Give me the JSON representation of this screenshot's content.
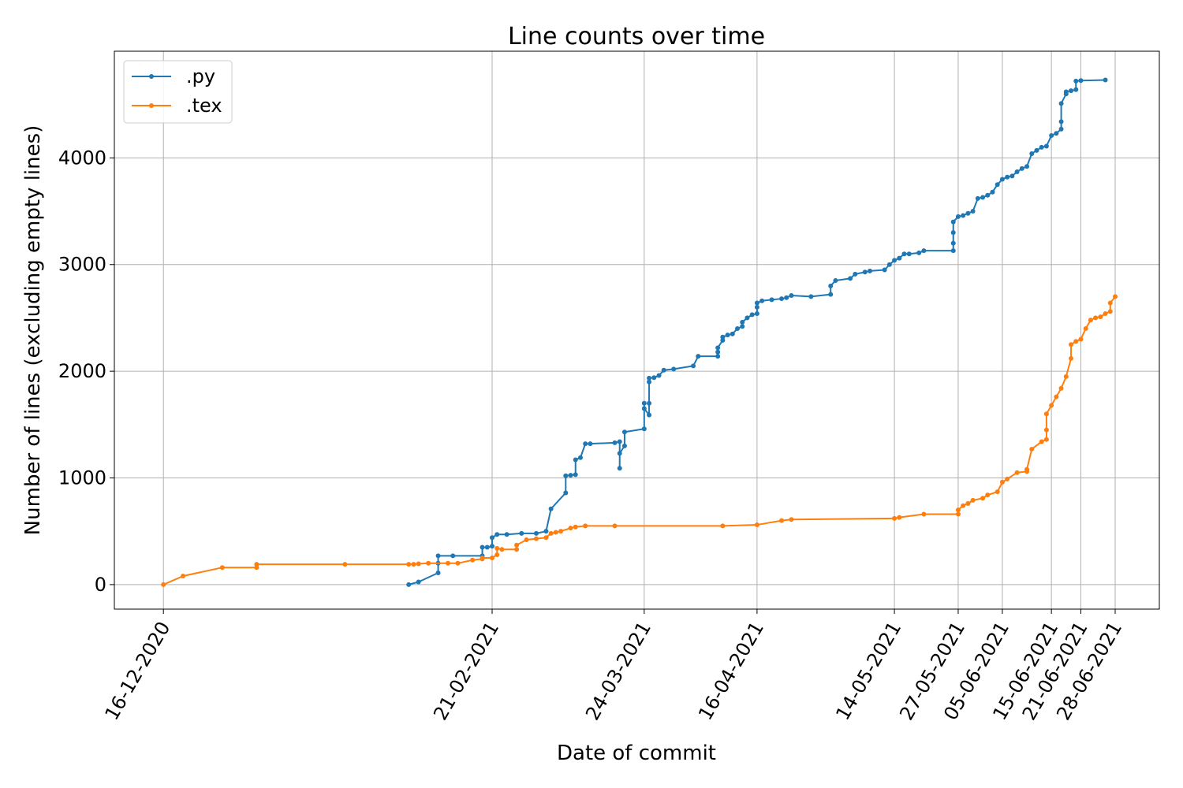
{
  "chart_data": {
    "type": "line",
    "title": "Line counts over time",
    "xlabel": "Date of commit",
    "ylabel": "Number of lines (excluding empty lines)",
    "x_ticks": [
      "2020-12-16",
      "2021-02-21",
      "2021-03-24",
      "2021-04-16",
      "2021-05-14",
      "2021-05-27",
      "2021-06-05",
      "2021-06-15",
      "2021-06-21",
      "2021-06-28"
    ],
    "x_tick_labels": [
      "16-12-2020",
      "21-02-2021",
      "24-03-2021",
      "16-04-2021",
      "14-05-2021",
      "27-05-2021",
      "05-06-2021",
      "15-06-2021",
      "21-06-2021",
      "28-06-2021"
    ],
    "xlim": [
      "2020-12-06",
      "2021-07-07"
    ],
    "y_ticks": [
      0,
      1000,
      2000,
      3000,
      4000
    ],
    "ylim": [
      -230,
      5000
    ],
    "grid": true,
    "legend_position": "upper-left",
    "series": [
      {
        "name": ".py",
        "color": "#1f77b4",
        "points": [
          [
            "2021-02-04",
            0
          ],
          [
            "2021-02-06",
            25
          ],
          [
            "2021-02-10",
            110
          ],
          [
            "2021-02-10",
            200
          ],
          [
            "2021-02-10",
            270
          ],
          [
            "2021-02-13",
            270
          ],
          [
            "2021-02-19",
            270
          ],
          [
            "2021-02-19",
            350
          ],
          [
            "2021-02-20",
            350
          ],
          [
            "2021-02-21",
            360
          ],
          [
            "2021-02-21",
            440
          ],
          [
            "2021-02-22",
            470
          ],
          [
            "2021-02-24",
            470
          ],
          [
            "2021-02-27",
            480
          ],
          [
            "2021-03-02",
            480
          ],
          [
            "2021-03-04",
            500
          ],
          [
            "2021-03-05",
            710
          ],
          [
            "2021-03-08",
            860
          ],
          [
            "2021-03-08",
            1020
          ],
          [
            "2021-03-09",
            1025
          ],
          [
            "2021-03-10",
            1030
          ],
          [
            "2021-03-10",
            1170
          ],
          [
            "2021-03-11",
            1190
          ],
          [
            "2021-03-12",
            1320
          ],
          [
            "2021-03-13",
            1320
          ],
          [
            "2021-03-18",
            1330
          ],
          [
            "2021-03-19",
            1340
          ],
          [
            "2021-03-19",
            1090
          ],
          [
            "2021-03-19",
            1230
          ],
          [
            "2021-03-20",
            1300
          ],
          [
            "2021-03-20",
            1430
          ],
          [
            "2021-03-24",
            1460
          ],
          [
            "2021-03-24",
            1700
          ],
          [
            "2021-03-24",
            1650
          ],
          [
            "2021-03-25",
            1590
          ],
          [
            "2021-03-25",
            1700
          ],
          [
            "2021-03-25",
            1900
          ],
          [
            "2021-03-25",
            1935
          ],
          [
            "2021-03-26",
            1940
          ],
          [
            "2021-03-27",
            1960
          ],
          [
            "2021-03-28",
            2010
          ],
          [
            "2021-03-30",
            2020
          ],
          [
            "2021-04-03",
            2050
          ],
          [
            "2021-04-04",
            2140
          ],
          [
            "2021-04-08",
            2140
          ],
          [
            "2021-04-08",
            2180
          ],
          [
            "2021-04-08",
            2220
          ],
          [
            "2021-04-09",
            2290
          ],
          [
            "2021-04-09",
            2320
          ],
          [
            "2021-04-10",
            2340
          ],
          [
            "2021-04-11",
            2350
          ],
          [
            "2021-04-12",
            2400
          ],
          [
            "2021-04-13",
            2420
          ],
          [
            "2021-04-13",
            2460
          ],
          [
            "2021-04-14",
            2500
          ],
          [
            "2021-04-15",
            2530
          ],
          [
            "2021-04-16",
            2540
          ],
          [
            "2021-04-16",
            2600
          ],
          [
            "2021-04-16",
            2640
          ],
          [
            "2021-04-17",
            2660
          ],
          [
            "2021-04-19",
            2670
          ],
          [
            "2021-04-21",
            2680
          ],
          [
            "2021-04-22",
            2690
          ],
          [
            "2021-04-23",
            2710
          ],
          [
            "2021-04-27",
            2700
          ],
          [
            "2021-05-01",
            2720
          ],
          [
            "2021-05-01",
            2800
          ],
          [
            "2021-05-02",
            2850
          ],
          [
            "2021-05-05",
            2870
          ],
          [
            "2021-05-06",
            2910
          ],
          [
            "2021-05-08",
            2930
          ],
          [
            "2021-05-09",
            2940
          ],
          [
            "2021-05-12",
            2950
          ],
          [
            "2021-05-13",
            3000
          ],
          [
            "2021-05-14",
            3040
          ],
          [
            "2021-05-15",
            3060
          ],
          [
            "2021-05-16",
            3100
          ],
          [
            "2021-05-17",
            3100
          ],
          [
            "2021-05-19",
            3110
          ],
          [
            "2021-05-20",
            3130
          ],
          [
            "2021-05-26",
            3130
          ],
          [
            "2021-05-26",
            3200
          ],
          [
            "2021-05-26",
            3300
          ],
          [
            "2021-05-26",
            3400
          ],
          [
            "2021-05-27",
            3450
          ],
          [
            "2021-05-28",
            3460
          ],
          [
            "2021-05-29",
            3480
          ],
          [
            "2021-05-30",
            3500
          ],
          [
            "2021-05-31",
            3620
          ],
          [
            "2021-06-01",
            3630
          ],
          [
            "2021-06-02",
            3650
          ],
          [
            "2021-06-03",
            3680
          ],
          [
            "2021-06-04",
            3750
          ],
          [
            "2021-06-05",
            3800
          ],
          [
            "2021-06-06",
            3820
          ],
          [
            "2021-06-07",
            3830
          ],
          [
            "2021-06-08",
            3870
          ],
          [
            "2021-06-09",
            3900
          ],
          [
            "2021-06-10",
            3920
          ],
          [
            "2021-06-11",
            4040
          ],
          [
            "2021-06-12",
            4070
          ],
          [
            "2021-06-13",
            4100
          ],
          [
            "2021-06-14",
            4110
          ],
          [
            "2021-06-15",
            4210
          ],
          [
            "2021-06-16",
            4230
          ],
          [
            "2021-06-17",
            4270
          ],
          [
            "2021-06-17",
            4340
          ],
          [
            "2021-06-17",
            4510
          ],
          [
            "2021-06-18",
            4600
          ],
          [
            "2021-06-18",
            4620
          ],
          [
            "2021-06-19",
            4630
          ],
          [
            "2021-06-20",
            4640
          ],
          [
            "2021-06-20",
            4720
          ],
          [
            "2021-06-21",
            4725
          ],
          [
            "2021-06-26",
            4730
          ]
        ]
      },
      {
        "name": ".tex",
        "color": "#ff7f0e",
        "points": [
          [
            "2020-12-16",
            0
          ],
          [
            "2020-12-20",
            80
          ],
          [
            "2020-12-28",
            160
          ],
          [
            "2021-01-04",
            160
          ],
          [
            "2021-01-04",
            190
          ],
          [
            "2021-01-22",
            190
          ],
          [
            "2021-02-04",
            190
          ],
          [
            "2021-02-05",
            190
          ],
          [
            "2021-02-06",
            195
          ],
          [
            "2021-02-08",
            200
          ],
          [
            "2021-02-12",
            200
          ],
          [
            "2021-02-14",
            200
          ],
          [
            "2021-02-17",
            230
          ],
          [
            "2021-02-19",
            240
          ],
          [
            "2021-02-19",
            250
          ],
          [
            "2021-02-21",
            250
          ],
          [
            "2021-02-22",
            280
          ],
          [
            "2021-02-22",
            340
          ],
          [
            "2021-02-23",
            330
          ],
          [
            "2021-02-26",
            330
          ],
          [
            "2021-02-26",
            370
          ],
          [
            "2021-02-28",
            420
          ],
          [
            "2021-03-02",
            430
          ],
          [
            "2021-03-04",
            440
          ],
          [
            "2021-03-05",
            480
          ],
          [
            "2021-03-06",
            490
          ],
          [
            "2021-03-07",
            500
          ],
          [
            "2021-03-09",
            530
          ],
          [
            "2021-03-10",
            540
          ],
          [
            "2021-03-12",
            550
          ],
          [
            "2021-03-18",
            550
          ],
          [
            "2021-04-09",
            550
          ],
          [
            "2021-04-16",
            560
          ],
          [
            "2021-04-21",
            600
          ],
          [
            "2021-04-23",
            610
          ],
          [
            "2021-05-14",
            620
          ],
          [
            "2021-05-15",
            630
          ],
          [
            "2021-05-20",
            660
          ],
          [
            "2021-05-27",
            660
          ],
          [
            "2021-05-27",
            700
          ],
          [
            "2021-05-28",
            740
          ],
          [
            "2021-05-29",
            760
          ],
          [
            "2021-05-30",
            790
          ],
          [
            "2021-06-01",
            810
          ],
          [
            "2021-06-02",
            840
          ],
          [
            "2021-06-04",
            870
          ],
          [
            "2021-06-05",
            960
          ],
          [
            "2021-06-06",
            990
          ],
          [
            "2021-06-08",
            1050
          ],
          [
            "2021-06-10",
            1060
          ],
          [
            "2021-06-10",
            1080
          ],
          [
            "2021-06-11",
            1270
          ],
          [
            "2021-06-13",
            1340
          ],
          [
            "2021-06-14",
            1360
          ],
          [
            "2021-06-14",
            1450
          ],
          [
            "2021-06-14",
            1600
          ],
          [
            "2021-06-15",
            1680
          ],
          [
            "2021-06-16",
            1760
          ],
          [
            "2021-06-17",
            1840
          ],
          [
            "2021-06-18",
            1950
          ],
          [
            "2021-06-19",
            2120
          ],
          [
            "2021-06-19",
            2250
          ],
          [
            "2021-06-20",
            2280
          ],
          [
            "2021-06-21",
            2300
          ],
          [
            "2021-06-22",
            2400
          ],
          [
            "2021-06-23",
            2480
          ],
          [
            "2021-06-24",
            2500
          ],
          [
            "2021-06-25",
            2510
          ],
          [
            "2021-06-26",
            2540
          ],
          [
            "2021-06-27",
            2560
          ],
          [
            "2021-06-27",
            2640
          ],
          [
            "2021-06-28",
            2700
          ]
        ]
      }
    ]
  }
}
